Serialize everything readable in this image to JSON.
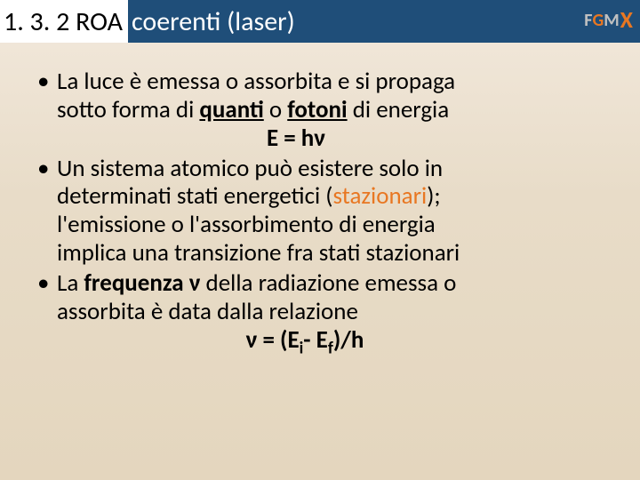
{
  "header": {
    "title_part1": "1. 3. 2 ROA ",
    "title_part2": "coerenti (laser)",
    "logo": {
      "f": "F",
      "g": "G",
      "m": "M",
      "x": "X"
    }
  },
  "content": {
    "bullets": [
      {
        "line1a": "La luce è emessa o assorbita e si propaga",
        "line2a": "sotto forma di ",
        "quanti": "quanti",
        "line2b": " o ",
        "fotoni": "fotoni",
        "line2c": " di energia",
        "formula": "E = hν"
      },
      {
        "line1": "Un sistema atomico può esistere solo in",
        "line2a": "determinati stati energetici (",
        "stazionari": "stazionari",
        "line2b": ");",
        "line3": "l'emissione o l'assorbimento di energia",
        "line4": "implica una transizione fra stati stazionari"
      },
      {
        "line1a": "La ",
        "frequenza": "frequenza",
        "nu": " ν ",
        "line1b": "della radiazione emessa o",
        "line2": "assorbita è data dalla relazione",
        "formula_nu": "ν",
        "formula_eq": " = (E",
        "sub_i": "i",
        "formula_mid": "- E",
        "sub_f": "f",
        "formula_end": ")/h"
      }
    ]
  },
  "styling": {
    "header_bg": "#1f4e79",
    "header_text": "#ffffff",
    "content_bg_top": "#f0e6d8",
    "content_bg_bottom": "#e4d6be",
    "accent_color": "#e87722",
    "body_text": "#000000",
    "title_fontsize": 30,
    "body_fontsize": 27
  }
}
